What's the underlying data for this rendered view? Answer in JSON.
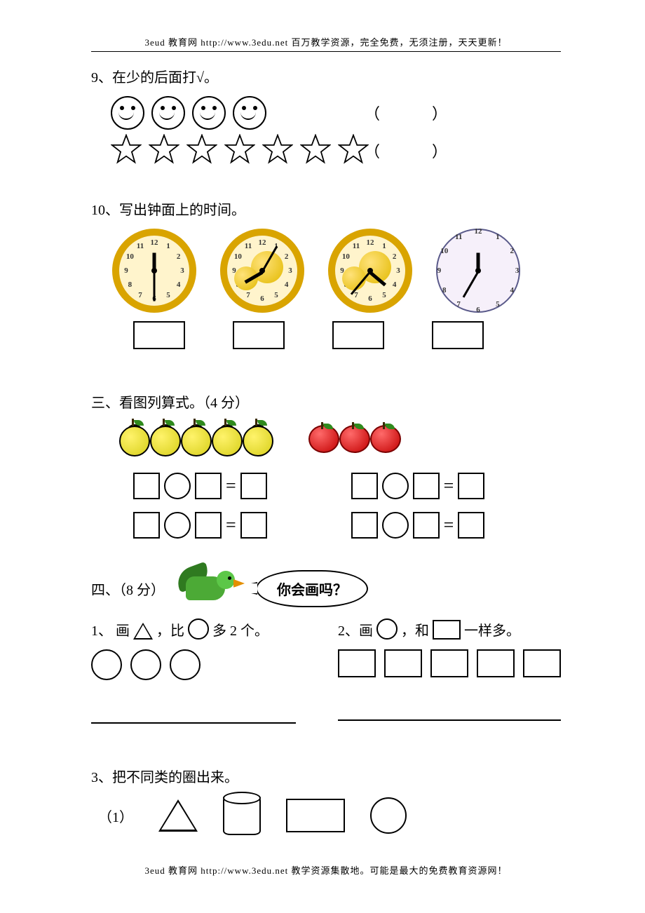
{
  "header": "3eud 教育网 http://www.3edu.net  百万教学资源，完全免费，无须注册，天天更新！",
  "footer": "3eud 教育网 http://www.3edu.net  教学资源集散地。可能是最大的免费教育资源网！",
  "q9": {
    "title": "9、在少的后面打√。",
    "row1_count": 4,
    "row2_count": 7,
    "paren": "（　　　）"
  },
  "q10": {
    "title": "10、写出钟面上的时间。",
    "clocks": [
      {
        "style": "gold",
        "hour_deg": -90,
        "min_deg": 90,
        "fruit": false
      },
      {
        "style": "gold",
        "hour_deg": 150,
        "min_deg": -60,
        "fruit": true
      },
      {
        "style": "gold",
        "hour_deg": 40,
        "min_deg": 130,
        "fruit": true
      },
      {
        "style": "plain",
        "hour_deg": -90,
        "min_deg": 120,
        "fruit": false
      }
    ]
  },
  "s3": {
    "title": "三、看图列算式。（4 分）",
    "pears": 5,
    "apples": 3,
    "eq_symbol": "="
  },
  "s4": {
    "title": "四、（8 分）",
    "bubble": "你会画吗？",
    "left": {
      "title_pre": "1、  画",
      "title_mid": "，比",
      "title_post": "多 2 个。",
      "given_circles": 3
    },
    "right": {
      "title_pre": "2、画",
      "title_mid": "，和",
      "title_post": " 一样多。",
      "given_rects": 5
    }
  },
  "q3b": {
    "title": "3、把不同类的圈出来。",
    "label": "（1）"
  },
  "colors": {
    "gold": "#d9a400",
    "pear": "#e6df20",
    "apple": "#c20000",
    "bird": "#4caa36"
  }
}
